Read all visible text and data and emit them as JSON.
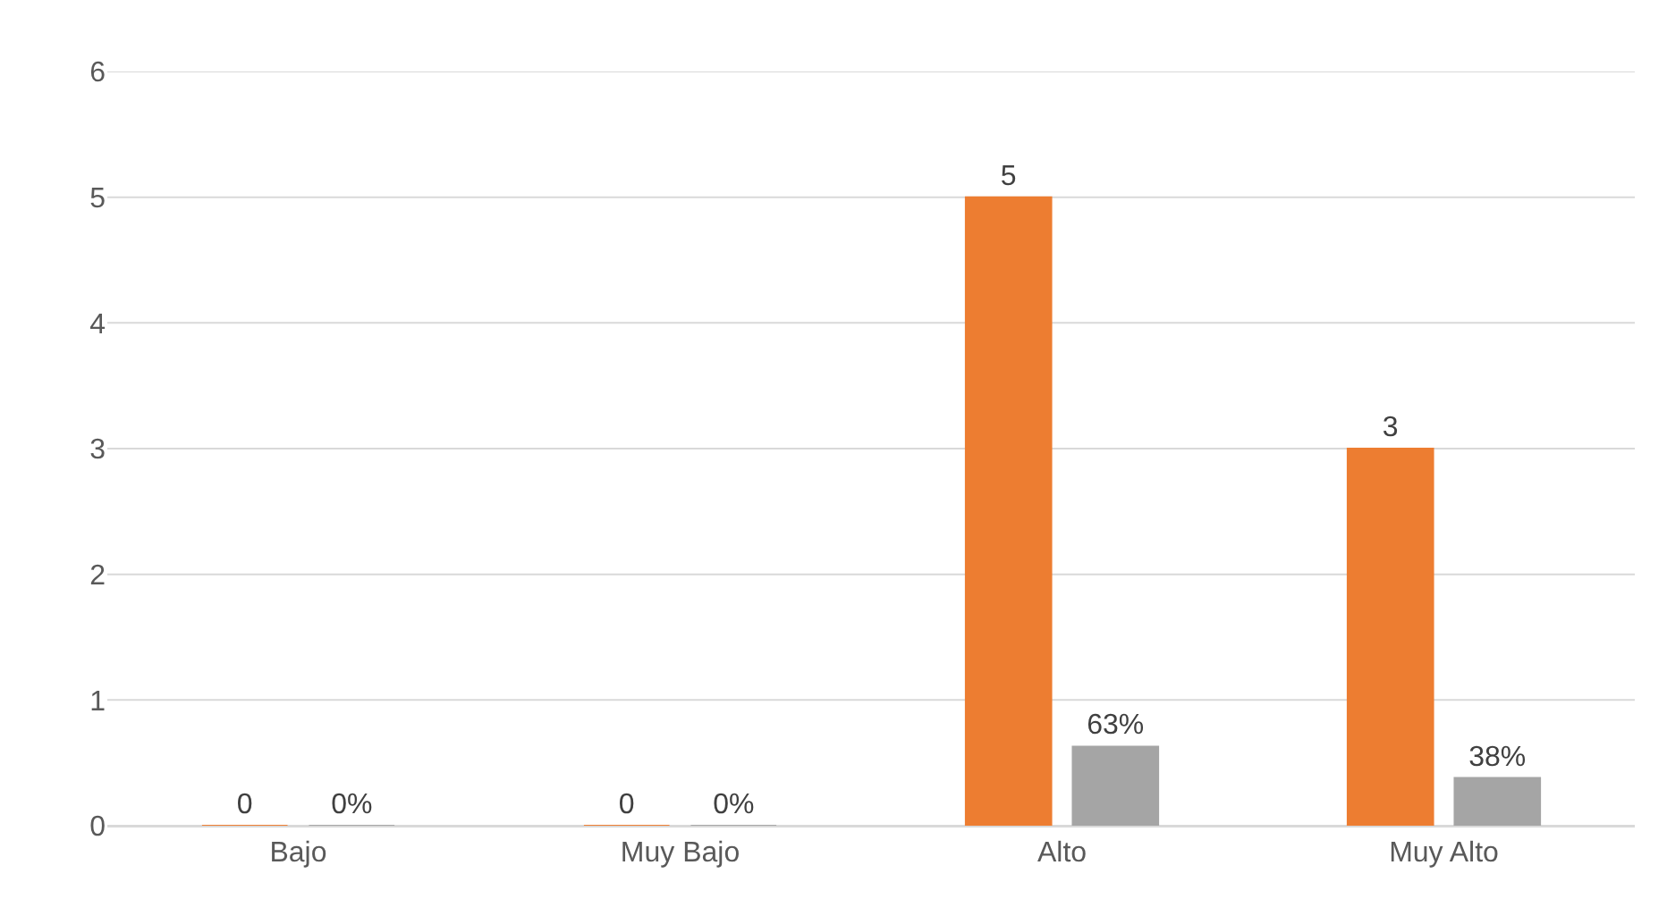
{
  "chart_data": {
    "type": "bar",
    "categories": [
      "Bajo",
      "Muy Bajo",
      "Alto",
      "Muy Alto"
    ],
    "series": [
      {
        "color": "#ed7d31",
        "values": [
          0,
          0,
          5,
          3
        ],
        "value_labels": [
          "0",
          "0",
          "5",
          "3"
        ]
      },
      {
        "color": "#a5a5a5",
        "values": [
          0,
          0,
          0.63,
          0.38
        ],
        "value_labels": [
          "0%",
          "0%",
          "63%",
          "38%"
        ]
      }
    ],
    "ylim": [
      0,
      6
    ],
    "yticks": [
      0,
      1,
      2,
      3,
      4,
      5,
      6
    ],
    "grid": "y"
  }
}
